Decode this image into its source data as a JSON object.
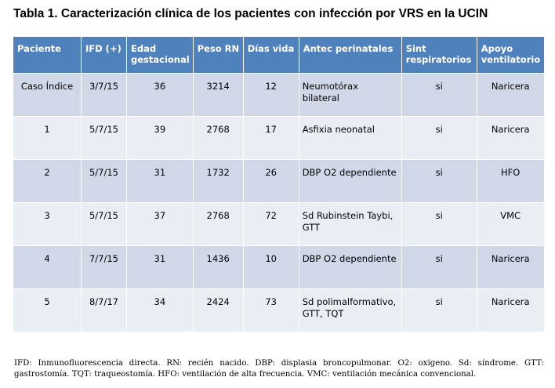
{
  "title": "Tabla 1. Caracterización clínica de los pacientes con infección por VRS en la UCIN",
  "table": {
    "headers": [
      "Paciente",
      "IFD (+)",
      "Edad gestacional",
      "Peso RN",
      "Días vida",
      "Antec perinatales",
      "Sint respiratorios",
      "Apoyo ventilatorio"
    ],
    "rows": [
      [
        "Caso Índice",
        "3/7/15",
        "36",
        "3214",
        "12",
        "Neumotórax bilateral",
        "si",
        "Naricera"
      ],
      [
        "1",
        "5/7/15",
        "39",
        "2768",
        "17",
        "Asfixia neonatal",
        "si",
        "Naricera"
      ],
      [
        "2",
        "5/7/15",
        "31",
        "1732",
        "26",
        "DBP O2 dependiente",
        "si",
        "HFO"
      ],
      [
        "3",
        "5/7/15",
        "37",
        "2768",
        "72",
        "Sd Rubinstein Taybi, GTT",
        "si",
        "VMC"
      ],
      [
        "4",
        "7/7/15",
        "31",
        "1436",
        "10",
        "DBP O2 dependiente",
        "si",
        "Naricera"
      ],
      [
        "5",
        "8/7/17",
        "34",
        "2424",
        "73",
        "Sd polimalformativo, GTT, TQT",
        "si",
        "Naricera"
      ]
    ]
  },
  "footnote": "IFD: Inmunofluorescencia directa. RN: recién nacido. DBP: displasia broncopulmonar. O2: oxigeno. Sd: síndrome. GTT: gastrostomía. TQT: traqueostomía. HFO: ventilación de alta frecuencia. VMC: ventilación mecánica convencional.",
  "colors": {
    "header_bg": "#4f81bd",
    "row_odd_bg": "#d0d8e8",
    "row_even_bg": "#e9edf4"
  }
}
